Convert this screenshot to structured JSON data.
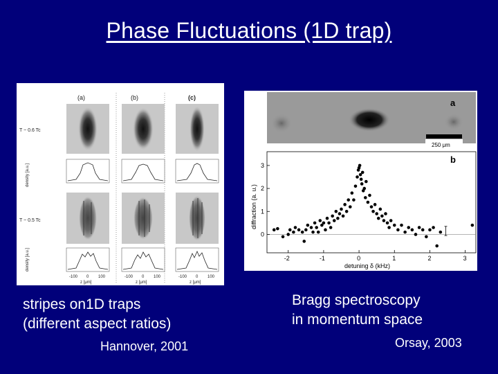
{
  "slide": {
    "title": "Phase Fluctuations (1D trap)",
    "left_caption_line1": "stripes on1D traps",
    "left_caption_line2": "(different aspect ratios)",
    "left_credit": "Hannover, 2001",
    "right_caption_line1": "Bragg spectroscopy",
    "right_caption_line2": "in momentum space",
    "right_credit": "Orsay, 2003",
    "background_color": "#01007a"
  },
  "left_figure": {
    "column_labels": [
      "(a)",
      "(b)",
      "(c)"
    ],
    "row_labels": [
      "T ~ 0.6 Tc",
      "T ~ 0.5 Tc"
    ],
    "density_ylabel": "density [a.u.]",
    "xlabel": "z [μm]",
    "tick_labels": [
      "-100",
      "0",
      "100"
    ]
  },
  "right_figure": {
    "panel_a_label": "a",
    "panel_b_label": "b",
    "scale_bar_label": "250 μm",
    "chart_data": {
      "type": "scatter",
      "xlabel": "detuning δ (kHz)",
      "ylabel": "diffraction (a. u.)",
      "xlim": [
        -2.6,
        3.3
      ],
      "ylim": [
        -0.8,
        3.6
      ],
      "xticks": [
        -2,
        -1,
        0,
        1,
        2,
        3
      ],
      "yticks": [
        0,
        1,
        2,
        3
      ],
      "series": [
        {
          "points": [
            [
              -2.4,
              0.2
            ],
            [
              -2.3,
              0.25
            ],
            [
              -2.15,
              -0.1
            ],
            [
              -2.0,
              0.0
            ],
            [
              -1.95,
              0.2
            ],
            [
              -1.85,
              0.1
            ],
            [
              -1.8,
              0.3
            ],
            [
              -1.7,
              0.2
            ],
            [
              -1.6,
              0.1
            ],
            [
              -1.55,
              -0.3
            ],
            [
              -1.5,
              0.2
            ],
            [
              -1.45,
              0.4
            ],
            [
              -1.35,
              0.3
            ],
            [
              -1.3,
              0.1
            ],
            [
              -1.25,
              0.5
            ],
            [
              -1.2,
              0.3
            ],
            [
              -1.15,
              0.1
            ],
            [
              -1.1,
              0.6
            ],
            [
              -1.05,
              0.4
            ],
            [
              -1.0,
              0.5
            ],
            [
              -0.95,
              0.2
            ],
            [
              -0.9,
              0.7
            ],
            [
              -0.85,
              0.5
            ],
            [
              -0.8,
              0.3
            ],
            [
              -0.75,
              0.8
            ],
            [
              -0.7,
              0.6
            ],
            [
              -0.65,
              1.0
            ],
            [
              -0.6,
              0.7
            ],
            [
              -0.55,
              0.9
            ],
            [
              -0.5,
              1.1
            ],
            [
              -0.45,
              0.8
            ],
            [
              -0.4,
              1.3
            ],
            [
              -0.35,
              1.0
            ],
            [
              -0.3,
              1.5
            ],
            [
              -0.25,
              1.2
            ],
            [
              -0.2,
              1.8
            ],
            [
              -0.15,
              1.5
            ],
            [
              -0.1,
              2.1
            ],
            [
              -0.05,
              2.5
            ],
            [
              -0.02,
              2.8
            ],
            [
              0.0,
              2.9
            ],
            [
              0.02,
              3.0
            ],
            [
              0.04,
              2.6
            ],
            [
              0.06,
              2.4
            ],
            [
              0.08,
              2.2
            ],
            [
              0.1,
              2.7
            ],
            [
              0.12,
              1.9
            ],
            [
              0.15,
              2.0
            ],
            [
              0.18,
              1.6
            ],
            [
              0.2,
              2.3
            ],
            [
              0.25,
              1.4
            ],
            [
              0.3,
              1.7
            ],
            [
              0.35,
              1.2
            ],
            [
              0.4,
              1.0
            ],
            [
              0.45,
              1.3
            ],
            [
              0.5,
              0.9
            ],
            [
              0.55,
              0.7
            ],
            [
              0.6,
              1.1
            ],
            [
              0.65,
              0.8
            ],
            [
              0.7,
              0.6
            ],
            [
              0.75,
              0.9
            ],
            [
              0.8,
              0.5
            ],
            [
              0.85,
              0.3
            ],
            [
              0.9,
              0.6
            ],
            [
              1.0,
              0.4
            ],
            [
              1.1,
              0.2
            ],
            [
              1.2,
              0.4
            ],
            [
              1.3,
              0.1
            ],
            [
              1.4,
              0.3
            ],
            [
              1.5,
              0.2
            ],
            [
              1.6,
              0.0
            ],
            [
              1.7,
              0.3
            ],
            [
              1.8,
              0.2
            ],
            [
              1.9,
              -0.1
            ],
            [
              2.0,
              0.2
            ],
            [
              2.1,
              0.3
            ],
            [
              2.2,
              -0.5
            ],
            [
              2.3,
              0.1
            ],
            [
              3.2,
              0.4
            ]
          ]
        }
      ]
    }
  }
}
